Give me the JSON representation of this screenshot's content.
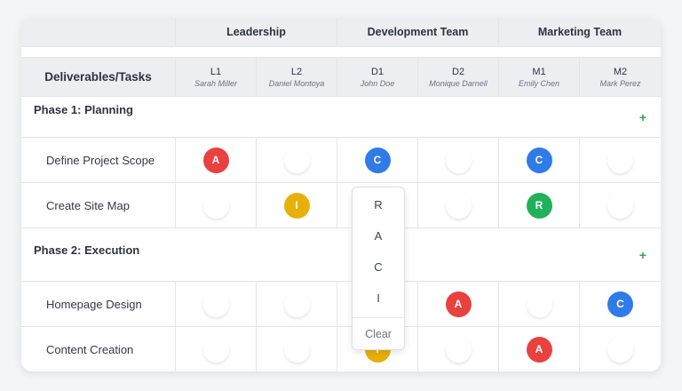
{
  "groups": [
    {
      "label": "Leadership"
    },
    {
      "label": "Development Team"
    },
    {
      "label": "Marketing Team"
    }
  ],
  "header": {
    "tasks_label": "Deliverables/Tasks"
  },
  "members": [
    {
      "code": "L1",
      "name": "Sarah Miller"
    },
    {
      "code": "L2",
      "name": "Daniel Montoya"
    },
    {
      "code": "D1",
      "name": "John Doe"
    },
    {
      "code": "D2",
      "name": "Monique Darnell"
    },
    {
      "code": "M1",
      "name": "Emily Chen"
    },
    {
      "code": "M2",
      "name": "Mark Perez"
    }
  ],
  "phases": [
    {
      "title": "Phase 1: Planning",
      "add_symbol": "+",
      "tasks": [
        {
          "name": "Define Project Scope",
          "roles": [
            "A",
            "",
            "C",
            "",
            "C",
            ""
          ]
        },
        {
          "name": "Create Site Map",
          "roles": [
            "",
            "I",
            "",
            "",
            "R",
            ""
          ]
        }
      ]
    },
    {
      "title": "Phase 2: Execution",
      "add_symbol": "+",
      "tasks": [
        {
          "name": "Homepage Design",
          "roles": [
            "",
            "",
            "",
            "A",
            "",
            "C"
          ]
        },
        {
          "name": "Content Creation",
          "roles": [
            "",
            "",
            "I",
            "",
            "A",
            ""
          ]
        }
      ]
    }
  ],
  "role_colors": {
    "R": "#22b05a",
    "A": "#e8413f",
    "C": "#2f7ce8",
    "I": "#e8b00a"
  },
  "role_menu": {
    "options": [
      "R",
      "A",
      "C",
      "I"
    ],
    "clear_label": "Clear"
  }
}
